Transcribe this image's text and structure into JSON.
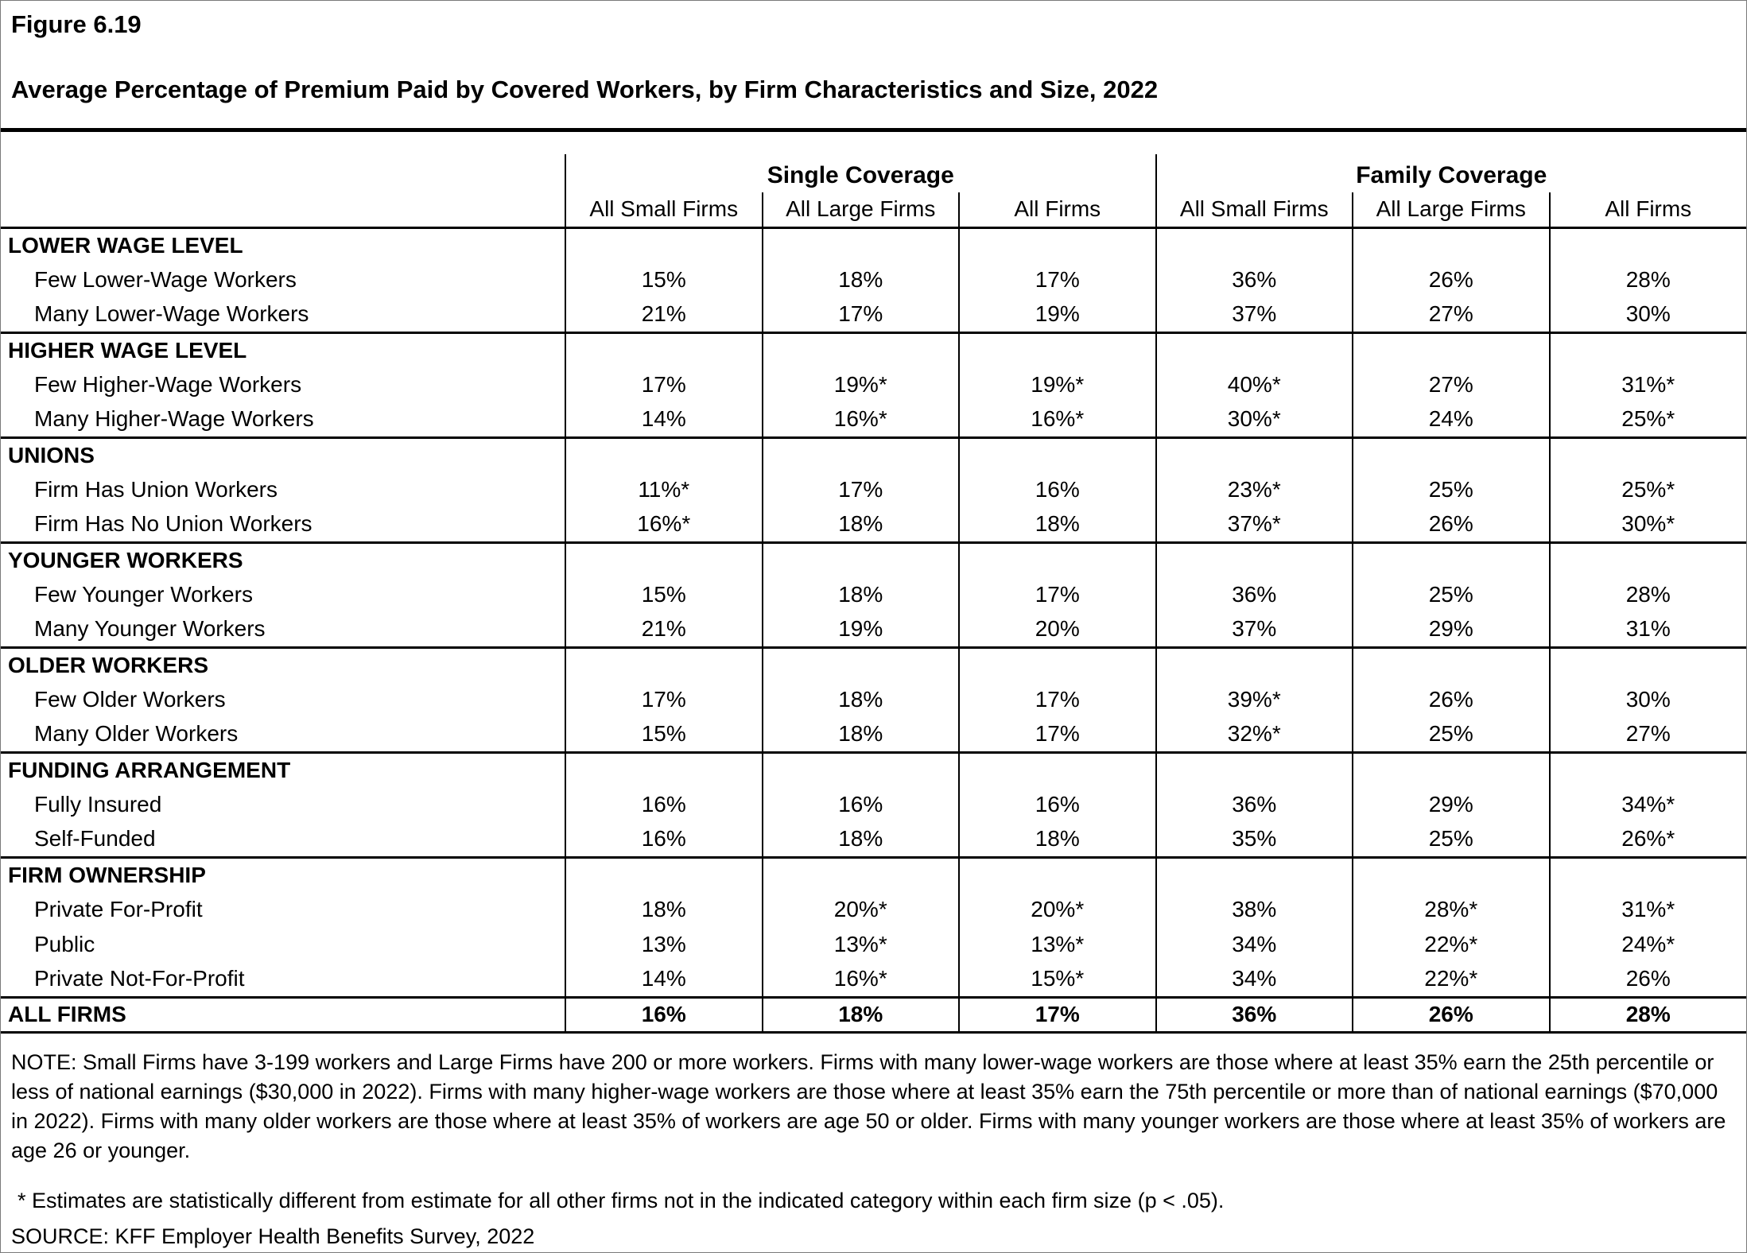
{
  "figure": {
    "label": "Figure 6.19",
    "title": "Average Percentage of Premium Paid by Covered Workers, by Firm Characteristics and Size, 2022"
  },
  "table": {
    "column_groups": [
      {
        "label": "Single Coverage"
      },
      {
        "label": "Family Coverage"
      }
    ],
    "columns": [
      "All Small Firms",
      "All Large Firms",
      "All Firms",
      "All Small Firms",
      "All Large Firms",
      "All Firms"
    ],
    "sections": [
      {
        "header": "LOWER WAGE LEVEL",
        "rows": [
          {
            "label": "Few Lower-Wage Workers",
            "values": [
              "15%",
              "18%",
              "17%",
              "36%",
              "26%",
              "28%"
            ]
          },
          {
            "label": "Many Lower-Wage Workers",
            "values": [
              "21%",
              "17%",
              "19%",
              "37%",
              "27%",
              "30%"
            ]
          }
        ]
      },
      {
        "header": "HIGHER WAGE LEVEL",
        "rows": [
          {
            "label": "Few Higher-Wage Workers",
            "values": [
              "17%",
              "19%*",
              "19%*",
              "40%*",
              "27%",
              "31%*"
            ]
          },
          {
            "label": "Many Higher-Wage Workers",
            "values": [
              "14%",
              "16%*",
              "16%*",
              "30%*",
              "24%",
              "25%*"
            ]
          }
        ]
      },
      {
        "header": "UNIONS",
        "rows": [
          {
            "label": "Firm Has Union Workers",
            "values": [
              "11%*",
              "17%",
              "16%",
              "23%*",
              "25%",
              "25%*"
            ]
          },
          {
            "label": "Firm Has No Union Workers",
            "values": [
              "16%*",
              "18%",
              "18%",
              "37%*",
              "26%",
              "30%*"
            ]
          }
        ]
      },
      {
        "header": "YOUNGER WORKERS",
        "rows": [
          {
            "label": "Few Younger Workers",
            "values": [
              "15%",
              "18%",
              "17%",
              "36%",
              "25%",
              "28%"
            ]
          },
          {
            "label": "Many Younger Workers",
            "values": [
              "21%",
              "19%",
              "20%",
              "37%",
              "29%",
              "31%"
            ]
          }
        ]
      },
      {
        "header": "OLDER WORKERS",
        "rows": [
          {
            "label": "Few Older Workers",
            "values": [
              "17%",
              "18%",
              "17%",
              "39%*",
              "26%",
              "30%"
            ]
          },
          {
            "label": "Many Older Workers",
            "values": [
              "15%",
              "18%",
              "17%",
              "32%*",
              "25%",
              "27%"
            ]
          }
        ]
      },
      {
        "header": "FUNDING ARRANGEMENT",
        "rows": [
          {
            "label": "Fully Insured",
            "values": [
              "16%",
              "16%",
              "16%",
              "36%",
              "29%",
              "34%*"
            ]
          },
          {
            "label": "Self-Funded",
            "values": [
              "16%",
              "18%",
              "18%",
              "35%",
              "25%",
              "26%*"
            ]
          }
        ]
      },
      {
        "header": "FIRM OWNERSHIP",
        "rows": [
          {
            "label": "Private For-Profit",
            "values": [
              "18%",
              "20%*",
              "20%*",
              "38%",
              "28%*",
              "31%*"
            ]
          },
          {
            "label": "Public",
            "values": [
              "13%",
              "13%*",
              "13%*",
              "34%",
              "22%*",
              "24%*"
            ]
          },
          {
            "label": "Private Not-For-Profit",
            "values": [
              "14%",
              "16%*",
              "15%*",
              "34%",
              "22%*",
              "26%"
            ]
          }
        ]
      }
    ],
    "total_row": {
      "label": "ALL FIRMS",
      "values": [
        "16%",
        "18%",
        "17%",
        "36%",
        "26%",
        "28%"
      ]
    }
  },
  "notes": {
    "note": "NOTE: Small Firms have 3-199 workers and Large Firms have 200 or more workers. Firms with many lower-wage workers are those where at least 35% earn the 25th percentile or less of national earnings ($30,000 in 2022). Firms with many higher-wage workers are those where at least 35% earn the 75th percentile or more than of national earnings ($70,000 in 2022). Firms with many older workers are those where at least 35% of workers are age 50 or older. Firms with many younger workers are those where at least 35% of workers are age 26 or younger.",
    "asterisk": "* Estimates are statistically different from estimate for all other firms not in the indicated category within each firm size (p < .05).",
    "source": "SOURCE: KFF Employer Health Benefits Survey, 2022"
  }
}
